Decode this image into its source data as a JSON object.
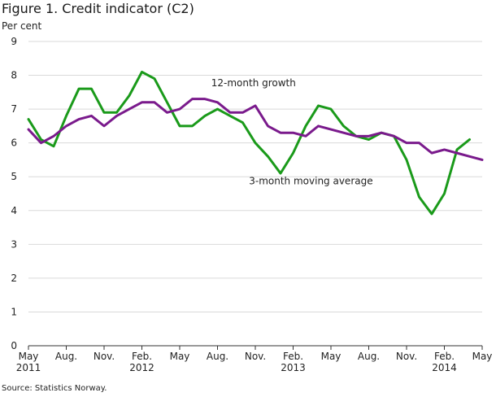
{
  "title": "Figure 1. Credit indicator (C2)",
  "unit_label": "Per cent",
  "source": "Source: Statistics Norway.",
  "chart_data": {
    "type": "line",
    "title": "Figure 1. Credit indicator (C2)",
    "ylabel": "Per cent",
    "xlabel": "",
    "ylim": [
      0,
      9
    ],
    "yticks": [
      0,
      1,
      2,
      3,
      4,
      5,
      6,
      7,
      8,
      9
    ],
    "x_range": [
      0,
      36
    ],
    "x_ticks": [
      {
        "i": 0,
        "label": "May",
        "year": "2011"
      },
      {
        "i": 3,
        "label": "Aug.",
        "year": ""
      },
      {
        "i": 6,
        "label": "Nov.",
        "year": ""
      },
      {
        "i": 9,
        "label": "Feb.",
        "year": "2012"
      },
      {
        "i": 12,
        "label": "May",
        "year": ""
      },
      {
        "i": 15,
        "label": "Aug.",
        "year": ""
      },
      {
        "i": 18,
        "label": "Nov.",
        "year": ""
      },
      {
        "i": 21,
        "label": "Feb.",
        "year": "2013"
      },
      {
        "i": 24,
        "label": "May",
        "year": ""
      },
      {
        "i": 27,
        "label": "Aug.",
        "year": ""
      },
      {
        "i": 30,
        "label": "Nov.",
        "year": ""
      },
      {
        "i": 33,
        "label": "Feb.",
        "year": "2014"
      },
      {
        "i": 36,
        "label": "May",
        "year": ""
      }
    ],
    "grid": true,
    "series": [
      {
        "name": "3-month moving average",
        "color": "#1a9a1a",
        "values": [
          6.7,
          6.1,
          5.9,
          6.8,
          7.6,
          7.6,
          6.9,
          6.9,
          7.4,
          8.1,
          7.9,
          7.2,
          6.5,
          6.5,
          6.8,
          7.0,
          6.8,
          6.6,
          6.0,
          5.6,
          5.1,
          5.7,
          6.5,
          7.1,
          7.0,
          6.5,
          6.2,
          6.1,
          6.3,
          6.2,
          5.5,
          4.4,
          3.9,
          4.5,
          5.8,
          6.1
        ]
      },
      {
        "name": "12-month growth",
        "color": "#7a1a8c",
        "values": [
          6.4,
          6.0,
          6.2,
          6.5,
          6.7,
          6.8,
          6.5,
          6.8,
          7.0,
          7.2,
          7.2,
          6.9,
          7.0,
          7.3,
          7.3,
          7.2,
          6.9,
          6.9,
          7.1,
          6.5,
          6.3,
          6.3,
          6.2,
          6.5,
          6.4,
          6.3,
          6.2,
          6.2,
          6.3,
          6.2,
          6.0,
          6.0,
          5.7,
          5.8,
          5.7,
          5.6,
          5.5
        ]
      }
    ],
    "annotations": [
      {
        "text": "12-month growth",
        "series": "12-month growth"
      },
      {
        "text": "3-month moving average",
        "series": "3-month moving average"
      }
    ]
  }
}
